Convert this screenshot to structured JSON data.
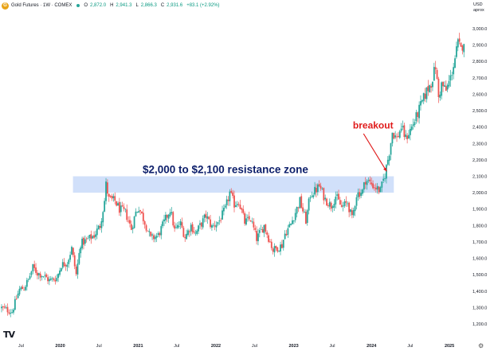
{
  "header": {
    "title": "Gold Futures · 1W · COMEX",
    "ohlc": [
      {
        "label": "O",
        "value": "2,872.0"
      },
      {
        "label": "H",
        "value": "2,941.3"
      },
      {
        "label": "L",
        "value": "2,866.3"
      },
      {
        "label": "C",
        "value": "2,931.6"
      },
      {
        "label": "",
        "value": "+83.1 (+2.92%)"
      }
    ],
    "currency_line1": "USD",
    "currency_line2": "aprox"
  },
  "colors": {
    "up": "#26a69a",
    "down": "#ef5350",
    "zone_fill": "#c9dbf9",
    "annotation_zone": "#0d1f6b",
    "annotation_breakout": "#e01b1b",
    "axis_text": "#131722"
  },
  "chart_data": {
    "type": "candlestick",
    "title": "",
    "yticks": [
      1200,
      1300,
      1400,
      1500,
      1600,
      1700,
      1800,
      1900,
      2000,
      2100,
      2200,
      2300,
      2400,
      2500,
      2600,
      2700,
      2800,
      2900,
      3000
    ],
    "ytick_labels": [
      "1,200.0",
      "1,300.0",
      "1,400.0",
      "1,500.0",
      "1,600.0",
      "1,700.0",
      "1,800.0",
      "1,900.0",
      "2,000.0",
      "2,100.0",
      "2,200.0",
      "2,300.0",
      "2,400.0",
      "2,500.0",
      "2,600.0",
      "2,700.0",
      "2,800.0",
      "2,900.0",
      "3,000.0"
    ],
    "ylim": [
      1150,
      3080
    ],
    "xlim": [
      "2019-04-01",
      "2025-03-24"
    ],
    "xticks": [
      {
        "date": "2019-07-01",
        "label": "Jul"
      },
      {
        "date": "2020-01-01",
        "label": "2020"
      },
      {
        "date": "2020-07-01",
        "label": "Jul"
      },
      {
        "date": "2021-01-01",
        "label": "2021"
      },
      {
        "date": "2021-07-01",
        "label": "Jul"
      },
      {
        "date": "2022-01-01",
        "label": "2022"
      },
      {
        "date": "2022-07-01",
        "label": "Jul"
      },
      {
        "date": "2023-01-01",
        "label": "2023"
      },
      {
        "date": "2023-07-01",
        "label": "Jul"
      },
      {
        "date": "2024-01-01",
        "label": "2024"
      },
      {
        "date": "2024-07-01",
        "label": "Jul"
      },
      {
        "date": "2025-01-01",
        "label": "2025"
      }
    ],
    "resistance_zone": {
      "low": 2000,
      "high": 2100,
      "start": "2020-03-01",
      "end": "2024-04-15",
      "label": "$2,000 to $2,100 resistance zone"
    },
    "breakout_annotation": {
      "label": "breakout",
      "date": "2024-03-01",
      "value": 2100
    },
    "weekly_close_path": [
      [
        "2019-04-01",
        1298
      ],
      [
        "2019-05-01",
        1283
      ],
      [
        "2019-05-20",
        1275
      ],
      [
        "2019-06-03",
        1330
      ],
      [
        "2019-06-24",
        1410
      ],
      [
        "2019-07-15",
        1420
      ],
      [
        "2019-08-05",
        1470
      ],
      [
        "2019-08-26",
        1545
      ],
      [
        "2019-09-16",
        1510
      ],
      [
        "2019-10-14",
        1495
      ],
      [
        "2019-11-11",
        1465
      ],
      [
        "2019-12-16",
        1480
      ],
      [
        "2020-01-06",
        1560
      ],
      [
        "2020-02-03",
        1575
      ],
      [
        "2020-02-24",
        1660
      ],
      [
        "2020-03-16",
        1500
      ],
      [
        "2020-04-06",
        1690
      ],
      [
        "2020-05-04",
        1710
      ],
      [
        "2020-06-08",
        1740
      ],
      [
        "2020-07-06",
        1800
      ],
      [
        "2020-07-27",
        1950
      ],
      [
        "2020-08-03",
        2050
      ],
      [
        "2020-08-17",
        1960
      ],
      [
        "2020-09-14",
        1950
      ],
      [
        "2020-10-05",
        1900
      ],
      [
        "2020-11-02",
        1880
      ],
      [
        "2020-11-30",
        1780
      ],
      [
        "2020-12-21",
        1880
      ],
      [
        "2021-01-04",
        1910
      ],
      [
        "2021-02-01",
        1820
      ],
      [
        "2021-03-01",
        1720
      ],
      [
        "2021-04-05",
        1740
      ],
      [
        "2021-05-10",
        1840
      ],
      [
        "2021-06-01",
        1900
      ],
      [
        "2021-06-21",
        1770
      ],
      [
        "2021-07-19",
        1810
      ],
      [
        "2021-08-09",
        1730
      ],
      [
        "2021-09-06",
        1800
      ],
      [
        "2021-09-27",
        1750
      ],
      [
        "2021-11-15",
        1860
      ],
      [
        "2021-12-13",
        1790
      ],
      [
        "2022-01-17",
        1830
      ],
      [
        "2022-02-14",
        1900
      ],
      [
        "2022-03-07",
        2000
      ],
      [
        "2022-03-28",
        1930
      ],
      [
        "2022-04-18",
        1950
      ],
      [
        "2022-05-16",
        1820
      ],
      [
        "2022-06-13",
        1840
      ],
      [
        "2022-07-11",
        1720
      ],
      [
        "2022-08-15",
        1800
      ],
      [
        "2022-09-12",
        1700
      ],
      [
        "2022-09-26",
        1650
      ],
      [
        "2022-11-07",
        1680
      ],
      [
        "2022-11-21",
        1750
      ],
      [
        "2022-12-19",
        1810
      ],
      [
        "2023-01-09",
        1880
      ],
      [
        "2023-01-30",
        1950
      ],
      [
        "2023-02-27",
        1830
      ],
      [
        "2023-03-20",
        1990
      ],
      [
        "2023-04-10",
        2010
      ],
      [
        "2023-05-01",
        2040
      ],
      [
        "2023-05-29",
        1960
      ],
      [
        "2023-06-26",
        1920
      ],
      [
        "2023-07-17",
        1980
      ],
      [
        "2023-08-14",
        1910
      ],
      [
        "2023-09-11",
        1940
      ],
      [
        "2023-10-02",
        1840
      ],
      [
        "2023-10-23",
        1990
      ],
      [
        "2023-11-20",
        2010
      ],
      [
        "2023-12-04",
        2080
      ],
      [
        "2023-12-25",
        2060
      ],
      [
        "2024-01-22",
        2030
      ],
      [
        "2024-02-12",
        2010
      ],
      [
        "2024-03-04",
        2110
      ],
      [
        "2024-03-25",
        2250
      ],
      [
        "2024-04-08",
        2370
      ],
      [
        "2024-04-29",
        2330
      ],
      [
        "2024-05-20",
        2400
      ],
      [
        "2024-06-10",
        2330
      ],
      [
        "2024-07-08",
        2400
      ],
      [
        "2024-07-29",
        2460
      ],
      [
        "2024-08-19",
        2530
      ],
      [
        "2024-09-16",
        2620
      ],
      [
        "2024-10-07",
        2670
      ],
      [
        "2024-10-28",
        2770
      ],
      [
        "2024-11-11",
        2580
      ],
      [
        "2024-11-25",
        2660
      ],
      [
        "2024-12-16",
        2620
      ],
      [
        "2025-01-06",
        2700
      ],
      [
        "2025-01-27",
        2820
      ],
      [
        "2025-02-10",
        2910
      ],
      [
        "2025-02-24",
        2870
      ],
      [
        "2025-03-10",
        2931
      ]
    ]
  }
}
